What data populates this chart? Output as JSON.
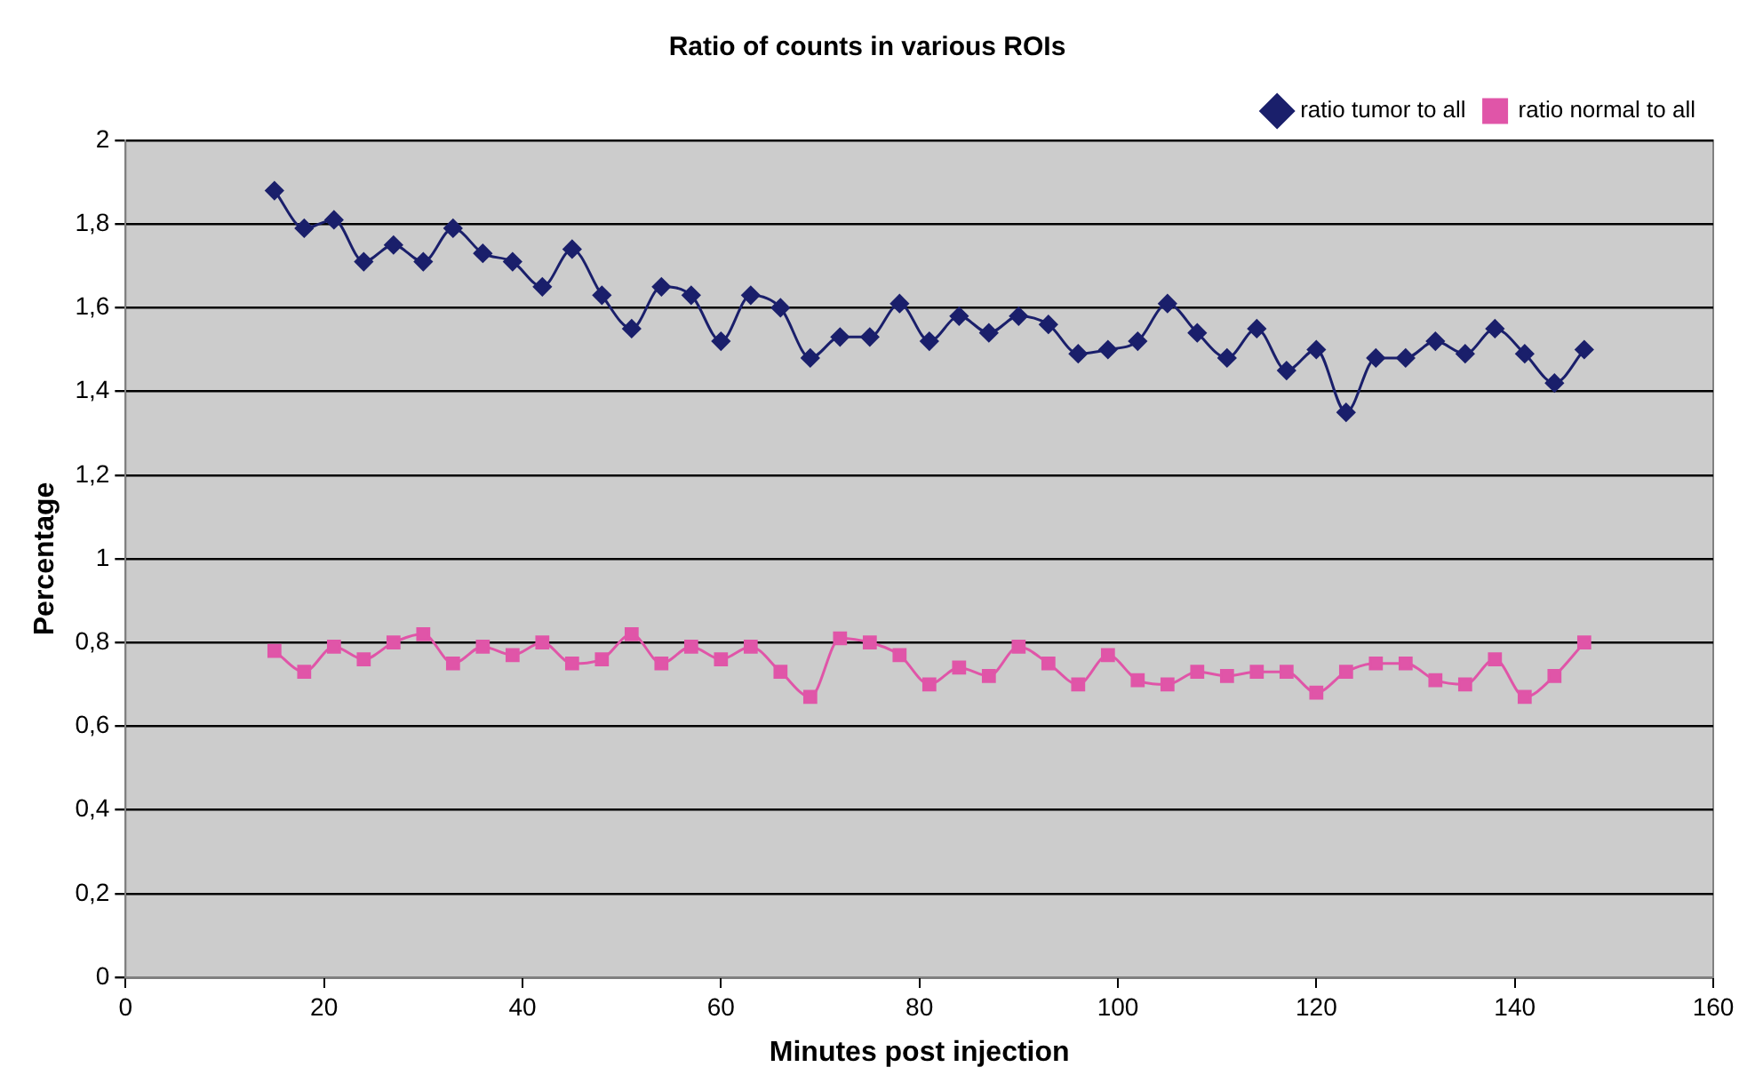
{
  "chart_data": {
    "type": "line",
    "title": "Ratio of counts in various ROIs",
    "xlabel": "Minutes post injection",
    "ylabel": "Percentage",
    "x": [
      15,
      18,
      21,
      24,
      27,
      30,
      33,
      36,
      39,
      42,
      45,
      48,
      51,
      54,
      57,
      60,
      63,
      66,
      69,
      72,
      75,
      78,
      81,
      84,
      87,
      90,
      93,
      96,
      99,
      102,
      105,
      108,
      111,
      114,
      117,
      120,
      123,
      126,
      129,
      132,
      135,
      138,
      141,
      144,
      147
    ],
    "series": [
      {
        "name": "ratio tumor to all",
        "color": "#1a1f6b",
        "marker": "diamond",
        "values": [
          1.88,
          1.79,
          1.81,
          1.71,
          1.75,
          1.71,
          1.79,
          1.73,
          1.71,
          1.65,
          1.74,
          1.63,
          1.55,
          1.65,
          1.63,
          1.52,
          1.63,
          1.6,
          1.48,
          1.53,
          1.53,
          1.61,
          1.52,
          1.58,
          1.54,
          1.58,
          1.56,
          1.49,
          1.5,
          1.52,
          1.61,
          1.54,
          1.48,
          1.55,
          1.45,
          1.5,
          1.35,
          1.48,
          1.48,
          1.52,
          1.49,
          1.55,
          1.49,
          1.42,
          1.5
        ]
      },
      {
        "name": "ratio normal to all",
        "color": "#e055a8",
        "marker": "square",
        "values": [
          0.78,
          0.73,
          0.79,
          0.76,
          0.8,
          0.82,
          0.75,
          0.79,
          0.77,
          0.8,
          0.75,
          0.76,
          0.82,
          0.75,
          0.79,
          0.76,
          0.79,
          0.73,
          0.67,
          0.81,
          0.8,
          0.77,
          0.7,
          0.74,
          0.72,
          0.79,
          0.75,
          0.7,
          0.77,
          0.71,
          0.7,
          0.73,
          0.72,
          0.73,
          0.73,
          0.68,
          0.73,
          0.75,
          0.75,
          0.71,
          0.7,
          0.76,
          0.67,
          0.72,
          0.8
        ]
      }
    ],
    "xlim": [
      0,
      160
    ],
    "xticks": [
      0,
      20,
      40,
      60,
      80,
      100,
      120,
      140,
      160
    ],
    "ylim": [
      0,
      2
    ],
    "yticks": [
      0,
      {
        "value": 0.2,
        "label": "0,2"
      },
      {
        "value": 0.4,
        "label": "0,4"
      },
      {
        "value": 0.6,
        "label": "0,6"
      },
      {
        "value": 0.8,
        "label": "0,8"
      },
      1,
      {
        "value": 1.2,
        "label": "1,2"
      },
      {
        "value": 1.4,
        "label": "1,4"
      },
      {
        "value": 1.6,
        "label": "1,6"
      },
      {
        "value": 1.8,
        "label": "1,8"
      },
      2
    ],
    "grid": "y",
    "legend": "top right",
    "line_style": "solid"
  }
}
